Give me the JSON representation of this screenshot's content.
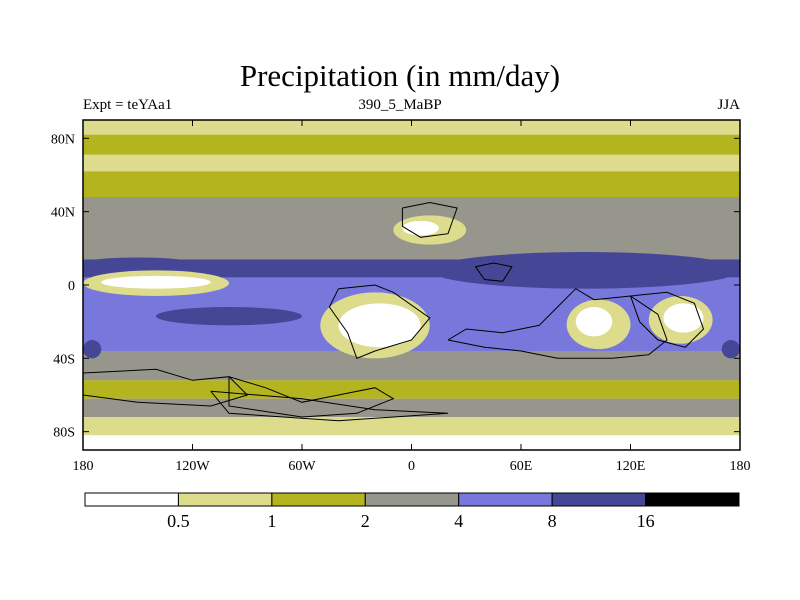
{
  "chart_data": {
    "type": "heatmap",
    "title": "Precipitation (in mm/day)",
    "subtitle_left": "Expt = teYAa1",
    "subtitle_center": "390_5_MaBP",
    "subtitle_right": "JJA",
    "x_ticks": [
      {
        "value": -180,
        "label": "180"
      },
      {
        "value": -120,
        "label": "120W"
      },
      {
        "value": -60,
        "label": "60W"
      },
      {
        "value": 0,
        "label": "0"
      },
      {
        "value": 60,
        "label": "60E"
      },
      {
        "value": 120,
        "label": "120E"
      },
      {
        "value": 180,
        "label": "180"
      }
    ],
    "y_ticks": [
      {
        "value": 80,
        "label": "80N"
      },
      {
        "value": 40,
        "label": "40N"
      },
      {
        "value": 0,
        "label": "0"
      },
      {
        "value": -40,
        "label": "40S"
      },
      {
        "value": -80,
        "label": "80S"
      }
    ],
    "xlim": [
      -180,
      180
    ],
    "ylim": [
      -90,
      90
    ],
    "colorbar": {
      "levels": [
        "0.5",
        "1",
        "2",
        "4",
        "8",
        "16"
      ],
      "colors": [
        "#ffffff",
        "#dcdc8c",
        "#b4b41e",
        "#96968c",
        "#7878dc",
        "#464696",
        "#000000"
      ]
    },
    "latitude_bands": [
      {
        "lat_max": 90,
        "lat_min": 82,
        "class": 1
      },
      {
        "lat_max": 82,
        "lat_min": 71,
        "class": 2
      },
      {
        "lat_max": 71,
        "lat_min": 62,
        "class": 1
      },
      {
        "lat_max": 62,
        "lat_min": 48,
        "class": 2
      },
      {
        "lat_max": 48,
        "lat_min": 24,
        "class": 3
      },
      {
        "lat_max": 24,
        "lat_min": 14,
        "class": 3
      },
      {
        "lat_max": 14,
        "lat_min": 4,
        "class": 5
      },
      {
        "lat_max": 4,
        "lat_min": -6,
        "class": 4
      },
      {
        "lat_max": -6,
        "lat_min": -36,
        "class": 4
      },
      {
        "lat_max": -36,
        "lat_min": -52,
        "class": 3
      },
      {
        "lat_max": -52,
        "lat_min": -62,
        "class": 2
      },
      {
        "lat_max": -62,
        "lat_min": -72,
        "class": 3
      },
      {
        "lat_max": -72,
        "lat_min": -82,
        "class": 1
      },
      {
        "lat_max": -82,
        "lat_min": -90,
        "class": 0
      }
    ],
    "patches": [
      {
        "lon": [
          -180,
          -100
        ],
        "lat": [
          -6,
          8
        ],
        "class": 1
      },
      {
        "lon": [
          -170,
          -110
        ],
        "lat": [
          -2,
          5
        ],
        "class": 0
      },
      {
        "lon": [
          -180,
          -120
        ],
        "lat": [
          9,
          15
        ],
        "class": 5
      },
      {
        "lon": [
          -140,
          -60
        ],
        "lat": [
          -22,
          -12
        ],
        "class": 5
      },
      {
        "lon": [
          -50,
          10
        ],
        "lat": [
          -40,
          -4
        ],
        "class": 1
      },
      {
        "lon": [
          -40,
          5
        ],
        "lat": [
          -34,
          -10
        ],
        "class": 0
      },
      {
        "lon": [
          -10,
          30
        ],
        "lat": [
          22,
          38
        ],
        "class": 1
      },
      {
        "lon": [
          -5,
          15
        ],
        "lat": [
          27,
          35
        ],
        "class": 0
      },
      {
        "lon": [
          10,
          180
        ],
        "lat": [
          -2,
          18
        ],
        "class": 5
      },
      {
        "lon": [
          30,
          70
        ],
        "lat": [
          2,
          14
        ],
        "class": 5
      },
      {
        "lon": [
          85,
          120
        ],
        "lat": [
          -35,
          -8
        ],
        "class": 1
      },
      {
        "lon": [
          90,
          110
        ],
        "lat": [
          -28,
          -12
        ],
        "class": 0
      },
      {
        "lon": [
          130,
          165
        ],
        "lat": [
          -32,
          -6
        ],
        "class": 1
      },
      {
        "lon": [
          138,
          160
        ],
        "lat": [
          -26,
          -10
        ],
        "class": 0
      },
      {
        "lon": [
          170,
          180
        ],
        "lat": [
          -40,
          -30
        ],
        "class": 5
      },
      {
        "lon": [
          -180,
          -170
        ],
        "lat": [
          -40,
          -30
        ],
        "class": 5
      }
    ],
    "outlines": [
      [
        [
          -180,
          -48
        ],
        [
          -140,
          -46
        ],
        [
          -120,
          -52
        ],
        [
          -100,
          -50
        ],
        [
          -90,
          -60
        ],
        [
          -110,
          -66
        ],
        [
          -150,
          -64
        ],
        [
          -180,
          -60
        ]
      ],
      [
        [
          -40,
          -2
        ],
        [
          -20,
          0
        ],
        [
          -10,
          -4
        ],
        [
          10,
          -18
        ],
        [
          0,
          -30
        ],
        [
          -20,
          -36
        ],
        [
          -30,
          -40
        ],
        [
          -35,
          -26
        ],
        [
          -45,
          -12
        ],
        [
          -40,
          -2
        ]
      ],
      [
        [
          -100,
          -50
        ],
        [
          -80,
          -56
        ],
        [
          -60,
          -64
        ],
        [
          -40,
          -60
        ],
        [
          -20,
          -56
        ],
        [
          -10,
          -62
        ],
        [
          -30,
          -70
        ],
        [
          -60,
          -72
        ],
        [
          -100,
          -66
        ],
        [
          -100,
          -50
        ]
      ],
      [
        [
          -5,
          42
        ],
        [
          10,
          45
        ],
        [
          25,
          42
        ],
        [
          20,
          28
        ],
        [
          5,
          26
        ],
        [
          -5,
          32
        ],
        [
          -5,
          42
        ]
      ],
      [
        [
          20,
          -30
        ],
        [
          40,
          -34
        ],
        [
          60,
          -36
        ],
        [
          80,
          -40
        ],
        [
          110,
          -40
        ],
        [
          130,
          -38
        ],
        [
          140,
          -30
        ],
        [
          135,
          -16
        ],
        [
          120,
          -6
        ],
        [
          100,
          -8
        ],
        [
          90,
          -2
        ],
        [
          80,
          -12
        ],
        [
          70,
          -22
        ],
        [
          50,
          -26
        ],
        [
          30,
          -24
        ],
        [
          20,
          -30
        ]
      ],
      [
        [
          120,
          -6
        ],
        [
          140,
          -4
        ],
        [
          155,
          -10
        ],
        [
          160,
          -24
        ],
        [
          150,
          -34
        ],
        [
          135,
          -30
        ],
        [
          125,
          -20
        ],
        [
          120,
          -6
        ]
      ],
      [
        [
          -110,
          -58
        ],
        [
          -60,
          -62
        ],
        [
          -20,
          -68
        ],
        [
          20,
          -70
        ],
        [
          -40,
          -74
        ],
        [
          -100,
          -70
        ],
        [
          -110,
          -58
        ]
      ],
      [
        [
          35,
          10
        ],
        [
          45,
          12
        ],
        [
          55,
          10
        ],
        [
          50,
          2
        ],
        [
          40,
          3
        ],
        [
          35,
          10
        ]
      ]
    ]
  }
}
